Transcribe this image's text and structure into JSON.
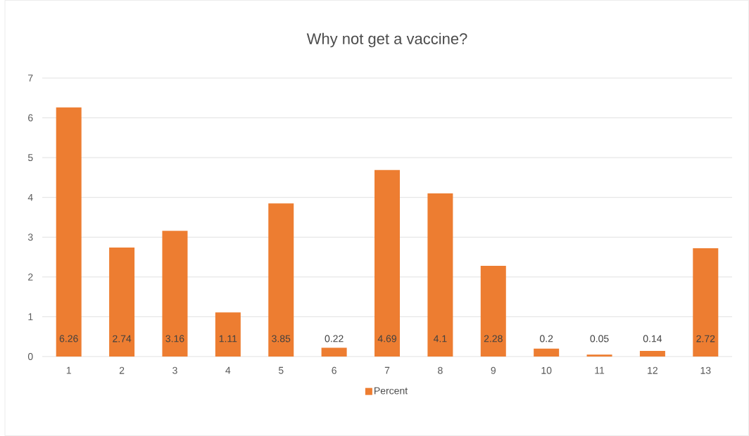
{
  "chart_data": {
    "type": "bar",
    "title": "Why not get a vaccine?",
    "categories": [
      "1",
      "2",
      "3",
      "4",
      "5",
      "6",
      "7",
      "8",
      "9",
      "10",
      "11",
      "12",
      "13"
    ],
    "series": [
      {
        "name": "Percent",
        "color": "#ed7d31",
        "values": [
          6.26,
          2.74,
          3.16,
          1.11,
          3.85,
          0.22,
          4.69,
          4.1,
          2.28,
          0.2,
          0.05,
          0.14,
          2.72
        ]
      }
    ],
    "ylim": [
      0,
      7
    ],
    "yticks": [
      0,
      1,
      2,
      3,
      4,
      5,
      6,
      7
    ],
    "grid": "y",
    "legend": "bottom",
    "data_labels": true
  }
}
